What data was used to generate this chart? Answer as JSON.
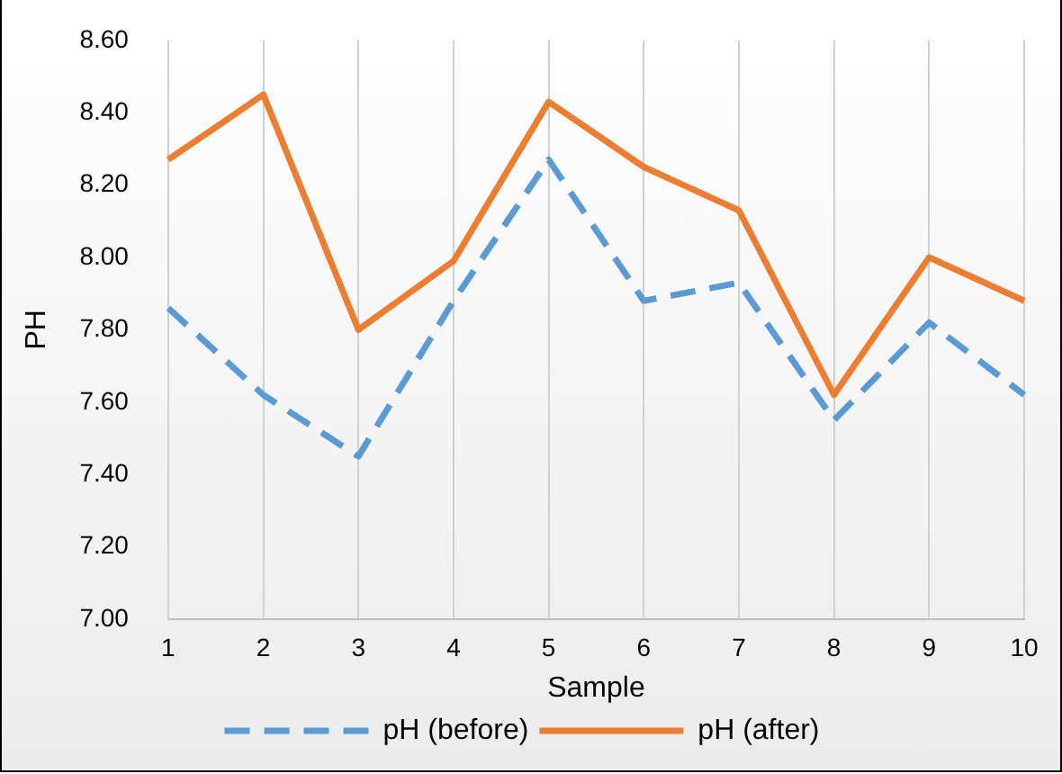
{
  "chart_data": {
    "type": "line",
    "xlabel": "Sample",
    "ylabel": "PH",
    "categories": [
      "1",
      "2",
      "3",
      "4",
      "5",
      "6",
      "7",
      "8",
      "9",
      "10"
    ],
    "series": [
      {
        "name": "pH (before)",
        "color": "#5b9bd5",
        "line_style": "dashed",
        "values": [
          7.86,
          7.62,
          7.45,
          7.88,
          8.27,
          7.88,
          7.93,
          7.55,
          7.82,
          7.62
        ]
      },
      {
        "name": "pH (after)",
        "color": "#ed7d31",
        "line_style": "solid",
        "values": [
          8.27,
          8.45,
          7.8,
          7.99,
          8.43,
          8.25,
          8.13,
          7.62,
          8.0,
          7.88
        ]
      }
    ],
    "ylim": [
      7.0,
      8.6
    ],
    "yticks": [
      {
        "value": 7.0,
        "label": "7.00"
      },
      {
        "value": 7.2,
        "label": "7.20"
      },
      {
        "value": 7.4,
        "label": "7.40"
      },
      {
        "value": 7.6,
        "label": "7.60"
      },
      {
        "value": 7.8,
        "label": "7.80"
      },
      {
        "value": 8.0,
        "label": "8.00"
      },
      {
        "value": 8.2,
        "label": "8.20"
      },
      {
        "value": 8.4,
        "label": "8.40"
      },
      {
        "value": 8.6,
        "label": "8.60"
      }
    ],
    "grid": "x",
    "legend": "bottom",
    "marker": "none"
  }
}
